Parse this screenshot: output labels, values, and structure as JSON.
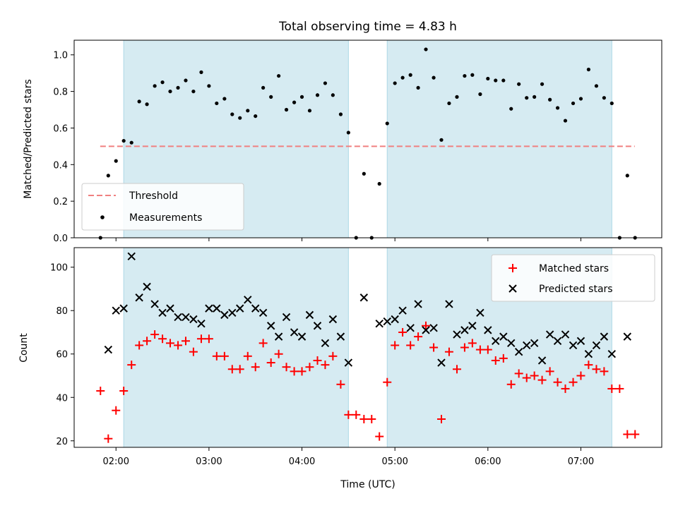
{
  "chart_data": [
    {
      "type": "scatter",
      "title": "Total observing time = 4.83 h",
      "xlabel": "",
      "ylabel": "Matched/Predicted stars",
      "xlim": [
        1.55,
        7.87
      ],
      "ylim": [
        0,
        1.08
      ],
      "yticks": [
        "0.0",
        "0.2",
        "0.4",
        "0.6",
        "0.8",
        "1.0"
      ],
      "shaded_spans": [
        [
          2.083,
          4.5
        ],
        [
          4.917,
          7.333
        ]
      ],
      "shade_color": "#add8e6",
      "legend_position": "lower left",
      "threshold": {
        "name": "Threshold",
        "value": 0.5,
        "x_start": 1.83,
        "x_end": 7.58,
        "color": "#f08080"
      },
      "series": [
        {
          "name": "Measurements",
          "color": "#000000",
          "x": [
            1.833,
            1.917,
            2.0,
            2.083,
            2.167,
            2.25,
            2.333,
            2.417,
            2.5,
            2.583,
            2.667,
            2.75,
            2.833,
            2.917,
            3.0,
            3.083,
            3.167,
            3.25,
            3.333,
            3.417,
            3.5,
            3.583,
            3.667,
            3.75,
            3.833,
            3.917,
            4.0,
            4.083,
            4.167,
            4.25,
            4.333,
            4.417,
            4.5,
            4.583,
            4.667,
            4.75,
            4.833,
            4.917,
            5.0,
            5.083,
            5.167,
            5.25,
            5.333,
            5.417,
            5.5,
            5.583,
            5.667,
            5.75,
            5.833,
            5.917,
            6.0,
            6.083,
            6.167,
            6.25,
            6.333,
            6.417,
            6.5,
            6.583,
            6.667,
            6.75,
            6.833,
            6.917,
            7.0,
            7.083,
            7.167,
            7.25,
            7.333,
            7.417,
            7.5,
            7.583
          ],
          "y": [
            0.0,
            0.34,
            0.42,
            0.53,
            0.52,
            0.745,
            0.73,
            0.83,
            0.85,
            0.8,
            0.82,
            0.86,
            0.8,
            0.905,
            0.83,
            0.735,
            0.76,
            0.675,
            0.655,
            0.695,
            0.665,
            0.82,
            0.77,
            0.885,
            0.7,
            0.74,
            0.77,
            0.695,
            0.78,
            0.845,
            0.78,
            0.675,
            0.575,
            0.0,
            0.35,
            0.0,
            0.295,
            0.625,
            0.845,
            0.875,
            0.89,
            0.82,
            1.03,
            0.875,
            0.535,
            0.735,
            0.77,
            0.885,
            0.89,
            0.785,
            0.87,
            0.86,
            0.86,
            0.705,
            0.84,
            0.765,
            0.77,
            0.84,
            0.755,
            0.71,
            0.64,
            0.735,
            0.76,
            0.92,
            0.83,
            0.765,
            0.735,
            0.0,
            0.34,
            0.0
          ]
        }
      ]
    },
    {
      "type": "scatter",
      "title": "",
      "xlabel": "Time (UTC)",
      "ylabel": "Count",
      "xlim": [
        1.55,
        7.87
      ],
      "ylim": [
        17,
        109
      ],
      "xticks": [
        {
          "value": 2,
          "label": "02:00"
        },
        {
          "value": 3,
          "label": "03:00"
        },
        {
          "value": 4,
          "label": "04:00"
        },
        {
          "value": 5,
          "label": "05:00"
        },
        {
          "value": 6,
          "label": "06:00"
        },
        {
          "value": 7,
          "label": "07:00"
        }
      ],
      "yticks": [
        "20",
        "40",
        "60",
        "80",
        "100"
      ],
      "shaded_spans": [
        [
          2.083,
          4.5
        ],
        [
          4.917,
          7.333
        ]
      ],
      "shade_color": "#add8e6",
      "legend_position": "upper right",
      "series": [
        {
          "name": "Matched stars",
          "marker": "plus",
          "color": "#ff0000",
          "x": [
            1.833,
            1.917,
            2.0,
            2.083,
            2.167,
            2.25,
            2.333,
            2.417,
            2.5,
            2.583,
            2.667,
            2.75,
            2.833,
            2.917,
            3.0,
            3.083,
            3.167,
            3.25,
            3.333,
            3.417,
            3.5,
            3.583,
            3.667,
            3.75,
            3.833,
            3.917,
            4.0,
            4.083,
            4.167,
            4.25,
            4.333,
            4.417,
            4.5,
            4.583,
            4.667,
            4.75,
            4.833,
            4.917,
            5.0,
            5.083,
            5.167,
            5.25,
            5.333,
            5.417,
            5.5,
            5.583,
            5.667,
            5.75,
            5.833,
            5.917,
            6.0,
            6.083,
            6.167,
            6.25,
            6.333,
            6.417,
            6.5,
            6.583,
            6.667,
            6.75,
            6.833,
            6.917,
            7.0,
            7.083,
            7.167,
            7.25,
            7.333,
            7.417,
            7.5,
            7.583
          ],
          "y": [
            43,
            21,
            34,
            43,
            55,
            64,
            66,
            69,
            67,
            65,
            64,
            66,
            61,
            67,
            67,
            59,
            59,
            53,
            53,
            59,
            54,
            65,
            56,
            60,
            54,
            52,
            52,
            54,
            57,
            55,
            59,
            46,
            32,
            32,
            30,
            30,
            22,
            47,
            64,
            70,
            64,
            68,
            73,
            63,
            30,
            61,
            53,
            63,
            65,
            62,
            62,
            57,
            58,
            46,
            51,
            49,
            50,
            48,
            52,
            47,
            44,
            47,
            50,
            55,
            53,
            52,
            44,
            44,
            23,
            23
          ]
        },
        {
          "name": "Predicted stars",
          "marker": "x",
          "color": "#000000",
          "x": [
            1.917,
            2.0,
            2.083,
            2.167,
            2.25,
            2.333,
            2.417,
            2.5,
            2.583,
            2.667,
            2.75,
            2.833,
            2.917,
            3.0,
            3.083,
            3.167,
            3.25,
            3.333,
            3.417,
            3.5,
            3.583,
            3.667,
            3.75,
            3.833,
            3.917,
            4.0,
            4.083,
            4.167,
            4.25,
            4.333,
            4.417,
            4.5,
            4.667,
            4.833,
            4.917,
            5.0,
            5.083,
            5.167,
            5.25,
            5.333,
            5.417,
            5.5,
            5.583,
            5.667,
            5.75,
            5.833,
            5.917,
            6.0,
            6.083,
            6.167,
            6.25,
            6.333,
            6.417,
            6.5,
            6.583,
            6.667,
            6.75,
            6.833,
            6.917,
            7.0,
            7.083,
            7.167,
            7.25,
            7.333,
            7.5
          ],
          "y": [
            62,
            80,
            81,
            105,
            86,
            91,
            83,
            79,
            81,
            77,
            77,
            76,
            74,
            81,
            81,
            78,
            79,
            81,
            85,
            81,
            79,
            73,
            68,
            77,
            70,
            68,
            78,
            73,
            65,
            76,
            68,
            56,
            86,
            74,
            75,
            76,
            80,
            72,
            83,
            71,
            72,
            56,
            83,
            69,
            71,
            73,
            79,
            71,
            66,
            68,
            65,
            61,
            64,
            65,
            57,
            69,
            66,
            69,
            64,
            66,
            60,
            64,
            68,
            60,
            68
          ]
        }
      ]
    }
  ]
}
